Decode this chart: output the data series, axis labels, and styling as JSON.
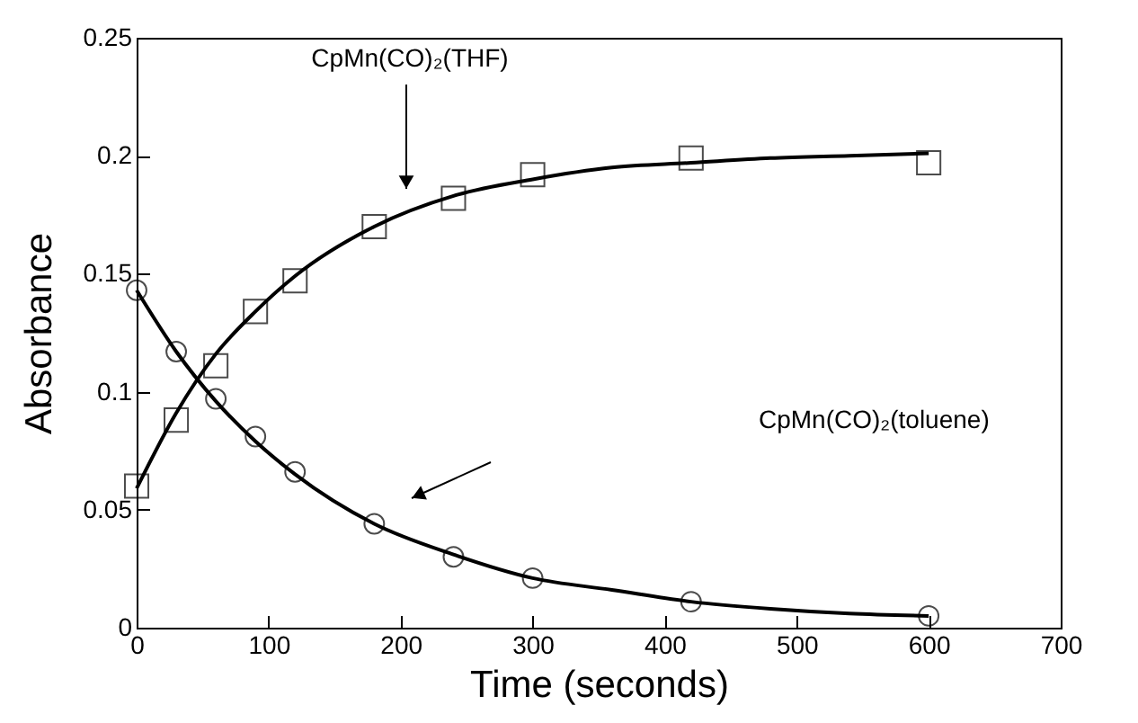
{
  "chart_data": {
    "type": "scatter",
    "xlabel": "Time  (seconds)",
    "ylabel": "Absorbance",
    "xlim": [
      0,
      700
    ],
    "xticks": [
      0,
      100,
      200,
      300,
      400,
      500,
      600,
      700
    ],
    "ylim": [
      0,
      0.25
    ],
    "yticks": [
      0,
      0.05,
      0.1,
      0.15,
      0.2,
      0.25
    ],
    "grid": false,
    "series": [
      {
        "marker": "square",
        "color": "#000000",
        "x": [
          0,
          30,
          60,
          90,
          120,
          180,
          240,
          300,
          420,
          600
        ],
        "values": [
          0.06,
          0.088,
          0.111,
          0.134,
          0.147,
          0.17,
          0.182,
          0.192,
          0.199,
          0.197
        ]
      },
      {
        "marker": "circle",
        "color": "#000000",
        "x": [
          0,
          30,
          60,
          90,
          120,
          180,
          240,
          300,
          420,
          600
        ],
        "values": [
          0.143,
          0.117,
          0.097,
          0.081,
          0.066,
          0.044,
          0.03,
          0.021,
          0.011,
          0.005
        ]
      },
      {
        "type": "line",
        "marker": "none",
        "line_style": "solid",
        "color": "#000000",
        "x": [
          0,
          30,
          60,
          90,
          120,
          180,
          240,
          300,
          360,
          420,
          480,
          540,
          600
        ],
        "values": [
          0.059,
          0.091,
          0.116,
          0.134,
          0.149,
          0.17,
          0.183,
          0.19,
          0.195,
          0.197,
          0.199,
          0.2,
          0.201
        ]
      },
      {
        "type": "line",
        "marker": "none",
        "line_style": "solid",
        "color": "#000000",
        "x": [
          0,
          30,
          60,
          90,
          120,
          180,
          240,
          300,
          360,
          420,
          480,
          540,
          600
        ],
        "values": [
          0.143,
          0.117,
          0.096,
          0.079,
          0.065,
          0.044,
          0.031,
          0.021,
          0.016,
          0.011,
          0.008,
          0.006,
          0.005
        ]
      }
    ],
    "annotations": [
      "CpMn(CO)₂(THF)",
      "CpMn(CO)₂(toluene)"
    ]
  }
}
